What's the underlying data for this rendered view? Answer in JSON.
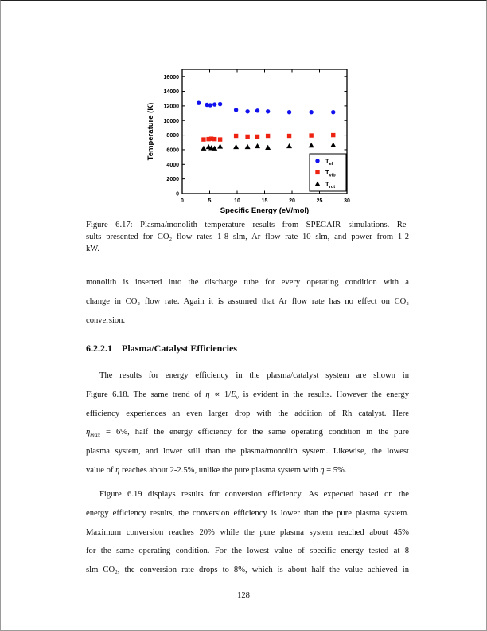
{
  "chart_data": {
    "type": "scatter",
    "title": "",
    "xlabel": "Specific Energy (eV/mol)",
    "ylabel": "Temperature (K)",
    "xlim": [
      0,
      30
    ],
    "ylim": [
      0,
      17000
    ],
    "xticks": [
      0,
      5,
      10,
      15,
      20,
      25,
      30
    ],
    "yticks": [
      0,
      2000,
      4000,
      6000,
      8000,
      10000,
      12000,
      14000,
      16000
    ],
    "grid": false,
    "legend_position": "lower-right",
    "series": [
      {
        "name": "T_el",
        "label_base": "T",
        "label_sub": "el",
        "marker": "circle",
        "color": "#1111ee",
        "x": [
          3.0,
          4.5,
          5.1,
          5.9,
          6.9,
          9.8,
          11.9,
          13.7,
          15.6,
          19.5,
          23.5,
          27.5
        ],
        "y": [
          12400,
          12150,
          12100,
          12200,
          12250,
          11450,
          11250,
          11350,
          11250,
          11150,
          11150,
          11150
        ]
      },
      {
        "name": "T_vib",
        "label_base": "T",
        "label_sub": "vib",
        "marker": "square",
        "color": "#ee2211",
        "x": [
          3.9,
          4.8,
          5.3,
          5.9,
          6.9,
          9.8,
          11.9,
          13.7,
          15.6,
          19.5,
          23.5,
          27.5
        ],
        "y": [
          7400,
          7450,
          7500,
          7450,
          7400,
          7900,
          7800,
          7800,
          7900,
          7900,
          7950,
          8000
        ]
      },
      {
        "name": "T_rot",
        "label_base": "T",
        "label_sub": "rot",
        "marker": "triangle",
        "color": "#000000",
        "x": [
          3.9,
          4.8,
          5.3,
          5.9,
          6.9,
          9.8,
          11.9,
          13.7,
          15.6,
          19.5,
          23.5,
          27.5
        ],
        "y": [
          6200,
          6400,
          6250,
          6200,
          6450,
          6400,
          6400,
          6500,
          6300,
          6500,
          6600,
          6650
        ]
      }
    ]
  },
  "caption": {
    "justify_last": false,
    "indent_first": false,
    "lines": [
      [
        [
          "n",
          "Figure 6.17: Plasma/monolith temperature results from SPECAIR simulations. Re-"
        ]
      ],
      [
        [
          "n",
          "sults presented for CO₂ flow rates 1-8 slm, Ar flow rate 10 slm, and power from 1-2"
        ]
      ],
      [
        [
          "n",
          "kW."
        ]
      ]
    ]
  },
  "body": {
    "para1": {
      "justify_last": false,
      "indent_first": false,
      "lines": [
        [
          [
            "n",
            "monolith is inserted into the discharge tube for every operating condition with a"
          ]
        ],
        [
          [
            "n",
            "change in CO₂ flow rate. Again it is assumed that Ar flow rate has no effect on CO₂"
          ]
        ],
        [
          [
            "n",
            "conversion."
          ]
        ]
      ]
    },
    "heading": {
      "number": "6.2.2.1",
      "title": "Plasma/Catalyst Efficiencies"
    },
    "para2": {
      "justify_last": false,
      "indent_first": true,
      "lines": [
        [
          [
            "n",
            "The results for energy efficiency in the plasma/catalyst system are shown in"
          ]
        ],
        [
          [
            "n",
            "Figure 6.18. The same trend of "
          ],
          [
            "i",
            "η"
          ],
          [
            "n",
            " ∝ 1/"
          ],
          [
            "i",
            "E"
          ],
          [
            "is",
            "v"
          ],
          [
            "n",
            " is evident in the results. However the energy"
          ]
        ],
        [
          [
            "n",
            "efficiency experiences an even larger drop with the addition of Rh catalyst. Here"
          ]
        ],
        [
          [
            "i",
            "η"
          ],
          [
            "is",
            "max"
          ],
          [
            "n",
            " = 6%, half the energy efficiency for the same operating condition in the pure"
          ]
        ],
        [
          [
            "n",
            "plasma system, and lower still than the plasma/monolith system. Likewise, the lowest"
          ]
        ],
        [
          [
            "n",
            "value of "
          ],
          [
            "i",
            "η"
          ],
          [
            "n",
            " reaches about 2-2.5%, unlike the pure plasma system with "
          ],
          [
            "i",
            "η"
          ],
          [
            "n",
            " = 5%."
          ]
        ]
      ]
    },
    "para3": {
      "justify_last": true,
      "indent_first": true,
      "lines": [
        [
          [
            "n",
            "Figure 6.19 displays results for conversion efficiency. As expected based on the"
          ]
        ],
        [
          [
            "n",
            "energy efficiency results, the conversion efficiency is lower than the pure plasma system."
          ]
        ],
        [
          [
            "n",
            "Maximum conversion reaches 20% while the pure plasma system reached about 45%"
          ]
        ],
        [
          [
            "n",
            "for the same operating condition. For the lowest value of specific energy tested at 8"
          ]
        ],
        [
          [
            "n",
            "slm CO₂, the conversion rate drops to 8%, which is about half the value achieved in"
          ]
        ]
      ]
    }
  },
  "footer": {
    "page_number": "128"
  }
}
